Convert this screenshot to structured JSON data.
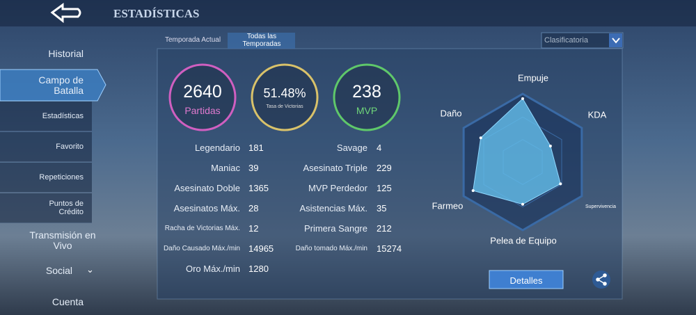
{
  "header": {
    "title": "ESTADÍSTICAS"
  },
  "sidebar": [
    "Historial",
    "Campo de Batalla",
    "Estadísticas",
    "Favorito",
    "Repeticiones",
    "Puntos de Crédito",
    "Transmisión en Vivo",
    "Social",
    "Cuenta"
  ],
  "tabs": [
    "Temporada Actual",
    "Todas las Temporadas"
  ],
  "mode": "Clasificatoria",
  "summary": [
    {
      "value": 2640,
      "label": "Partidas"
    },
    {
      "value": "51.48%",
      "label": "Tasa de Victorias"
    },
    {
      "value": 238,
      "label": "MVP"
    }
  ],
  "stats_left": [
    [
      "Legendario",
      181
    ],
    [
      "Maniac",
      39
    ],
    [
      "Asesinato Doble",
      1365
    ],
    [
      "Asesinatos Máx.",
      28
    ],
    [
      "Racha de Victorias Máx.",
      12
    ],
    [
      "Daño Causado Máx./min",
      14965
    ],
    [
      "Oro Máx./min",
      1280
    ]
  ],
  "stats_right": [
    [
      "Savage",
      4
    ],
    [
      "Asesinato Triple",
      229
    ],
    [
      "MVP Perdedor",
      125
    ],
    [
      "Asistencias Máx.",
      35
    ],
    [
      "Primera Sangre",
      212
    ],
    [
      "Daño tomado Máx./min",
      15274
    ]
  ],
  "radar": {
    "labels": [
      "Empuje",
      "KDA",
      "Supervivencia",
      "Pelea de Equipo",
      "Farmeo",
      "Daño"
    ],
    "values": [
      93,
      47,
      64,
      62,
      84,
      71
    ],
    "rlim": [
      0,
      100
    ]
  },
  "button": "Detalles"
}
